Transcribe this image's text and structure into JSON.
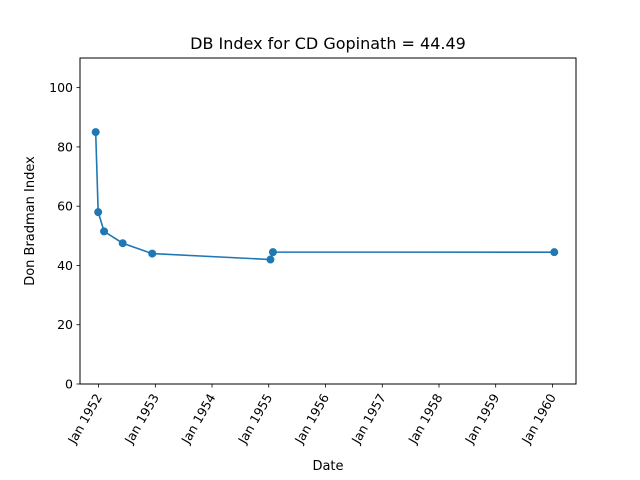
{
  "chart_data": {
    "type": "line",
    "title": "DB Index for CD Gopinath = 44.49",
    "xlabel": "Date",
    "ylabel": "Don Bradman Index",
    "ylim": [
      0,
      110
    ],
    "yticks": [
      0,
      20,
      40,
      60,
      80,
      100
    ],
    "xlim": [
      "1951-09-04",
      "1960-06-01"
    ],
    "xticks": [
      {
        "date": "1952-01-01",
        "label": "Jan 1952"
      },
      {
        "date": "1953-01-01",
        "label": "Jan 1953"
      },
      {
        "date": "1954-01-01",
        "label": "Jan 1954"
      },
      {
        "date": "1955-01-01",
        "label": "Jan 1955"
      },
      {
        "date": "1956-01-01",
        "label": "Jan 1956"
      },
      {
        "date": "1957-01-01",
        "label": "Jan 1957"
      },
      {
        "date": "1958-01-01",
        "label": "Jan 1958"
      },
      {
        "date": "1959-01-01",
        "label": "Jan 1959"
      },
      {
        "date": "1960-01-01",
        "label": "Jan 1960"
      }
    ],
    "series": [
      {
        "color": "#1f77b4",
        "marker": "circle",
        "points": [
          {
            "x": "1951-12-14",
            "y": 85.0
          },
          {
            "x": "1951-12-30",
            "y": 58.0
          },
          {
            "x": "1952-02-06",
            "y": 51.5
          },
          {
            "x": "1952-06-05",
            "y": 47.5
          },
          {
            "x": "1952-12-12",
            "y": 44.0
          },
          {
            "x": "1955-01-12",
            "y": 42.0
          },
          {
            "x": "1955-01-28",
            "y": 44.5
          },
          {
            "x": "1960-01-13",
            "y": 44.49
          }
        ]
      }
    ],
    "grid": false,
    "legend": "none"
  }
}
